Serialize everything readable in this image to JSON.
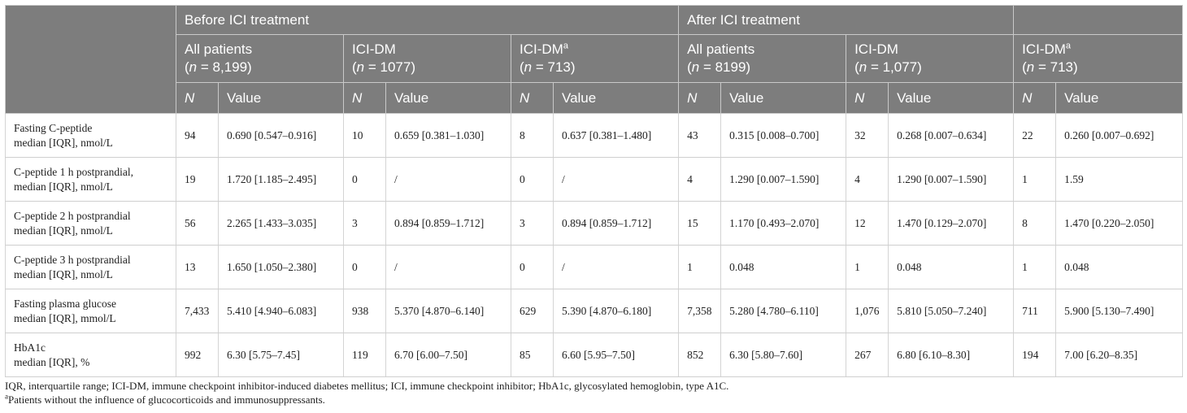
{
  "header": {
    "group_before": "Before ICI treatment",
    "group_after": "After ICI treatment",
    "subgroups": [
      {
        "name": "All patients",
        "n_label": "n",
        "n_value": " = 8,199)",
        "sup": ""
      },
      {
        "name": "ICI-DM",
        "n_label": "n",
        "n_value": " = 1077)",
        "sup": ""
      },
      {
        "name": "ICI-DM",
        "n_label": "n",
        "n_value": " = 713)",
        "sup": "a"
      },
      {
        "name": "All patients",
        "n_label": "n",
        "n_value": " = 8199)",
        "sup": ""
      },
      {
        "name": "ICI-DM",
        "n_label": "n",
        "n_value": " = 1,077)",
        "sup": ""
      },
      {
        "name": "ICI-DM",
        "n_label": "n",
        "n_value": " = 713)",
        "sup": "a"
      }
    ],
    "col_n": "N",
    "col_value": "Value"
  },
  "rows": [
    {
      "label1": "Fasting C-peptide",
      "label2": "median [IQR], nmol/L",
      "cells": [
        [
          "94",
          "0.690 [0.547–0.916]"
        ],
        [
          "10",
          "0.659 [0.381–1.030]"
        ],
        [
          "8",
          "0.637 [0.381–1.480]"
        ],
        [
          "43",
          "0.315 [0.008–0.700]"
        ],
        [
          "32",
          "0.268 [0.007–0.634]"
        ],
        [
          "22",
          "0.260 [0.007–0.692]"
        ]
      ]
    },
    {
      "label1": "C-peptide 1 h postprandial,",
      "label2": "median [IQR], nmol/L",
      "cells": [
        [
          "19",
          "1.720 [1.185–2.495]"
        ],
        [
          "0",
          "/"
        ],
        [
          "0",
          "/"
        ],
        [
          "4",
          "1.290 [0.007–1.590]"
        ],
        [
          "4",
          "1.290 [0.007–1.590]"
        ],
        [
          "1",
          "1.59"
        ]
      ]
    },
    {
      "label1": "C-peptide 2 h postprandial",
      "label2": "median [IQR], nmol/L",
      "cells": [
        [
          "56",
          "2.265 [1.433–3.035]"
        ],
        [
          "3",
          "0.894 [0.859–1.712]"
        ],
        [
          "3",
          "0.894 [0.859–1.712]"
        ],
        [
          "15",
          "1.170 [0.493–2.070]"
        ],
        [
          "12",
          "1.470 [0.129–2.070]"
        ],
        [
          "8",
          "1.470 [0.220–2.050]"
        ]
      ]
    },
    {
      "label1": "C-peptide 3 h postprandial",
      "label2": "median [IQR], nmol/L",
      "cells": [
        [
          "13",
          "1.650 [1.050–2.380]"
        ],
        [
          "0",
          "/"
        ],
        [
          "0",
          "/"
        ],
        [
          "1",
          "0.048"
        ],
        [
          "1",
          "0.048"
        ],
        [
          "1",
          "0.048"
        ]
      ]
    },
    {
      "label1": "Fasting plasma glucose",
      "label2": "median [IQR], mmol/L",
      "cells": [
        [
          "7,433",
          "5.410 [4.940–6.083]"
        ],
        [
          "938",
          "5.370 [4.870–6.140]"
        ],
        [
          "629",
          "5.390 [4.870–6.180]"
        ],
        [
          "7,358",
          "5.280 [4.780–6.110]"
        ],
        [
          "1,076",
          "5.810 [5.050–7.240]"
        ],
        [
          "711",
          "5.900 [5.130–7.490]"
        ]
      ]
    },
    {
      "label1": "HbA1c",
      "label2": "median [IQR], %",
      "cells": [
        [
          "992",
          "6.30 [5.75–7.45]"
        ],
        [
          "119",
          "6.70 [6.00–7.50]"
        ],
        [
          "85",
          "6.60 [5.95–7.50]"
        ],
        [
          "852",
          "6.30 [5.80–7.60]"
        ],
        [
          "267",
          "6.80 [6.10–8.30]"
        ],
        [
          "194",
          "7.00 [6.20–8.35]"
        ]
      ]
    }
  ],
  "footnotes": {
    "abbrev": "IQR, interquartile range; ICI-DM, immune checkpoint inhibitor-induced diabetes mellitus; ICI, immune checkpoint inhibitor; HbA1c, glycosylated hemoglobin, type A1C.",
    "note_marker": "a",
    "note_text": "Patients without the influence of glucocorticoids and immunosuppressants."
  }
}
